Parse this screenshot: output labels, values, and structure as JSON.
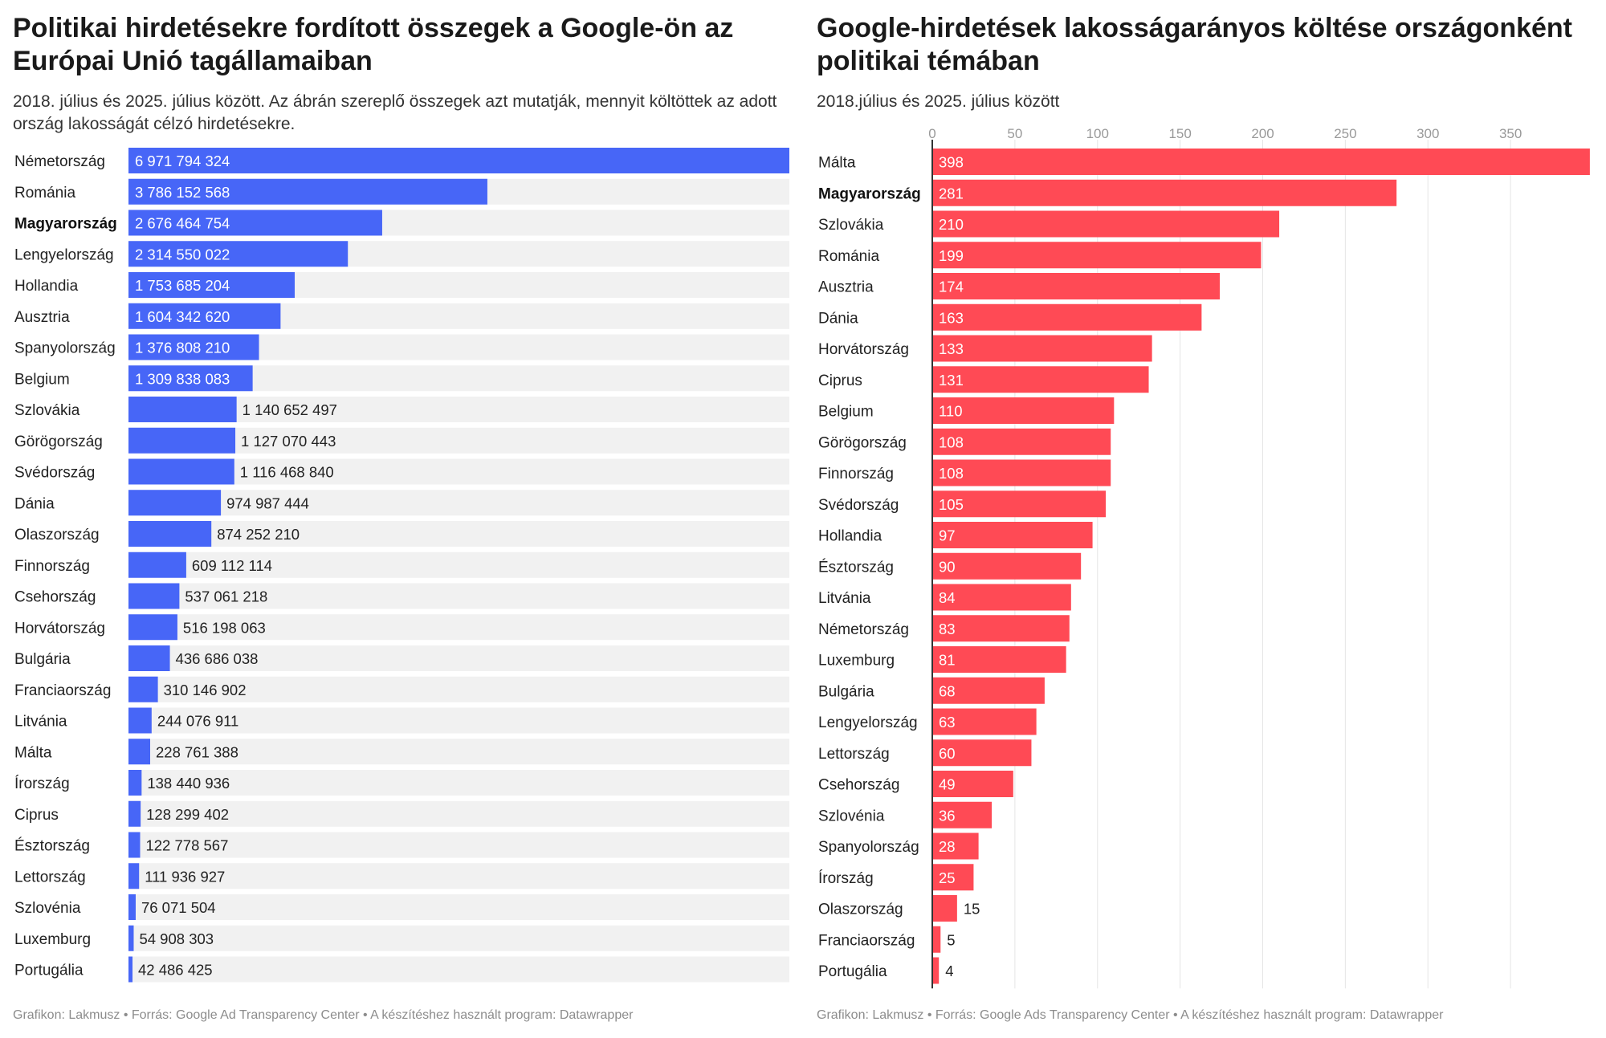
{
  "chart_data": [
    {
      "type": "bar",
      "orientation": "horizontal",
      "title": "Politikai hirdetésekre fordított összegek a Google-ön az Európai Unió tagállamaiban",
      "subtitle": "2018. július és 2025. július között. Az ábrán szereplő összegek azt mutatják, mennyit költöttek az adott ország lakosságát célzó hirdetésekre.",
      "footer": "Grafikon: Lakmusz • Forrás: Google Ad Transparency Center • A készítéshez használt program: Datawrapper",
      "highlight_category": "Magyarország",
      "bar_color": "#4766f7",
      "background_bar_color": "#f1f1f1",
      "categories": [
        "Németország",
        "Románia",
        "Magyarország",
        "Lengyelország",
        "Hollandia",
        "Ausztria",
        "Spanyolország",
        "Belgium",
        "Szlovákia",
        "Görögország",
        "Svédország",
        "Dánia",
        "Olaszország",
        "Finnország",
        "Csehország",
        "Horvátország",
        "Bulgária",
        "Franciaország",
        "Litvánia",
        "Málta",
        "Írország",
        "Ciprus",
        "Észtország",
        "Lettország",
        "Szlovénia",
        "Luxemburg",
        "Portugália"
      ],
      "values": [
        6971794324,
        3786152568,
        2676464754,
        2314550022,
        1753685204,
        1604342620,
        1376808210,
        1309838083,
        1140652497,
        1127070443,
        1116468840,
        974987444,
        874252210,
        609112114,
        537061218,
        516198063,
        436686038,
        310146902,
        244076911,
        228761388,
        138440936,
        128299402,
        122778567,
        111936927,
        76071504,
        54908303,
        42486425
      ],
      "value_labels": [
        "6 971 794 324",
        "3 786 152 568",
        "2 676 464 754",
        "2 314 550 022",
        "1 753 685 204",
        "1 604 342 620",
        "1 376 808 210",
        "1 309 838 083",
        "1 140 652 497",
        "1 127 070 443",
        "1 116 468 840",
        "974 987 444",
        "874 252 210",
        "609 112 114",
        "537 061 218",
        "516 198 063",
        "436 686 038",
        "310 146 902",
        "244 076 911",
        "228 761 388",
        "138 440 936",
        "128 299 402",
        "122 778 567",
        "111 936 927",
        "76 071 504",
        "54 908 303",
        "42 486 425"
      ],
      "xlim": [
        0,
        6971794324
      ],
      "grid": false,
      "axis_ticks": []
    },
    {
      "type": "bar",
      "orientation": "horizontal",
      "title": "Google-hirdetések lakosságarányos költése országonként politikai témában",
      "subtitle": "2018.július és 2025. július között",
      "footer": "Grafikon: Lakmusz • Forrás: Google Ads Transparency Center • A készítéshez használt program: Datawrapper",
      "highlight_category": "Magyarország",
      "bar_color": "#ff4a55",
      "grid_color": "#e5e5e5",
      "categories": [
        "Málta",
        "Magyarország",
        "Szlovákia",
        "Románia",
        "Ausztria",
        "Dánia",
        "Horvátország",
        "Ciprus",
        "Belgium",
        "Görögország",
        "Finnország",
        "Svédország",
        "Hollandia",
        "Észtország",
        "Litvánia",
        "Németország",
        "Luxemburg",
        "Bulgária",
        "Lengyelország",
        "Lettország",
        "Csehország",
        "Szlovénia",
        "Spanyolország",
        "Írország",
        "Olaszország",
        "Franciaország",
        "Portugália"
      ],
      "values": [
        398,
        281,
        210,
        199,
        174,
        163,
        133,
        131,
        110,
        108,
        108,
        105,
        97,
        90,
        84,
        83,
        81,
        68,
        63,
        60,
        49,
        36,
        28,
        25,
        15,
        5,
        4
      ],
      "value_labels": [
        "398",
        "281",
        "210",
        "199",
        "174",
        "163",
        "133",
        "131",
        "110",
        "108",
        "108",
        "105",
        "97",
        "90",
        "84",
        "83",
        "81",
        "68",
        "63",
        "60",
        "49",
        "36",
        "28",
        "25",
        "15",
        "5",
        "4"
      ],
      "xlim": [
        0,
        400
      ],
      "grid": true,
      "axis_ticks": [
        "0",
        "50",
        "100",
        "150",
        "200",
        "250",
        "300",
        "350"
      ],
      "axis_tick_values": [
        0,
        50,
        100,
        150,
        200,
        250,
        300,
        350
      ]
    }
  ]
}
